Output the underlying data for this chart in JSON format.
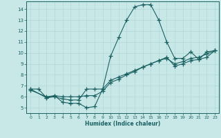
{
  "xlabel": "Humidex (Indice chaleur)",
  "bg_color": "#c8e8e8",
  "grid_color": "#b0d4d4",
  "line_color": "#1a6060",
  "marker": "+",
  "xlim": [
    -0.5,
    23.5
  ],
  "ylim": [
    4.5,
    14.7
  ],
  "xticks": [
    0,
    1,
    2,
    3,
    4,
    5,
    6,
    7,
    8,
    9,
    10,
    11,
    12,
    13,
    14,
    15,
    16,
    17,
    18,
    19,
    20,
    21,
    22,
    23
  ],
  "yticks": [
    5,
    6,
    7,
    8,
    9,
    10,
    11,
    12,
    13,
    14
  ],
  "line1_x": [
    0,
    1,
    2,
    3,
    4,
    5,
    6,
    7,
    8,
    9,
    10,
    11,
    12,
    13,
    14,
    15,
    16,
    17,
    18,
    19,
    20,
    21,
    22,
    23
  ],
  "line1_y": [
    6.7,
    6.7,
    5.9,
    6.1,
    5.5,
    5.4,
    5.4,
    5.0,
    5.1,
    6.7,
    9.7,
    11.4,
    13.0,
    14.2,
    14.4,
    14.4,
    13.0,
    11.0,
    9.5,
    9.5,
    10.1,
    9.4,
    10.1,
    10.2
  ],
  "line2_x": [
    0,
    2,
    3,
    4,
    5,
    6,
    7,
    8,
    9,
    10,
    11,
    12,
    13,
    14,
    15,
    16,
    17,
    18,
    19,
    20,
    21,
    22,
    23
  ],
  "line2_y": [
    6.7,
    5.9,
    6.0,
    5.8,
    5.7,
    5.7,
    6.7,
    6.7,
    6.7,
    7.5,
    7.8,
    8.1,
    8.4,
    8.7,
    9.0,
    9.3,
    9.6,
    8.8,
    9.0,
    9.3,
    9.4,
    9.6,
    10.2
  ],
  "line3_x": [
    0,
    2,
    3,
    4,
    5,
    6,
    7,
    8,
    9,
    10,
    11,
    12,
    13,
    14,
    15,
    16,
    17,
    18,
    19,
    20,
    21,
    22,
    23
  ],
  "line3_y": [
    6.6,
    6.0,
    6.1,
    6.0,
    6.0,
    6.0,
    6.1,
    6.1,
    6.5,
    7.3,
    7.6,
    8.0,
    8.3,
    8.7,
    9.0,
    9.3,
    9.5,
    9.0,
    9.2,
    9.5,
    9.6,
    9.9,
    10.2
  ]
}
